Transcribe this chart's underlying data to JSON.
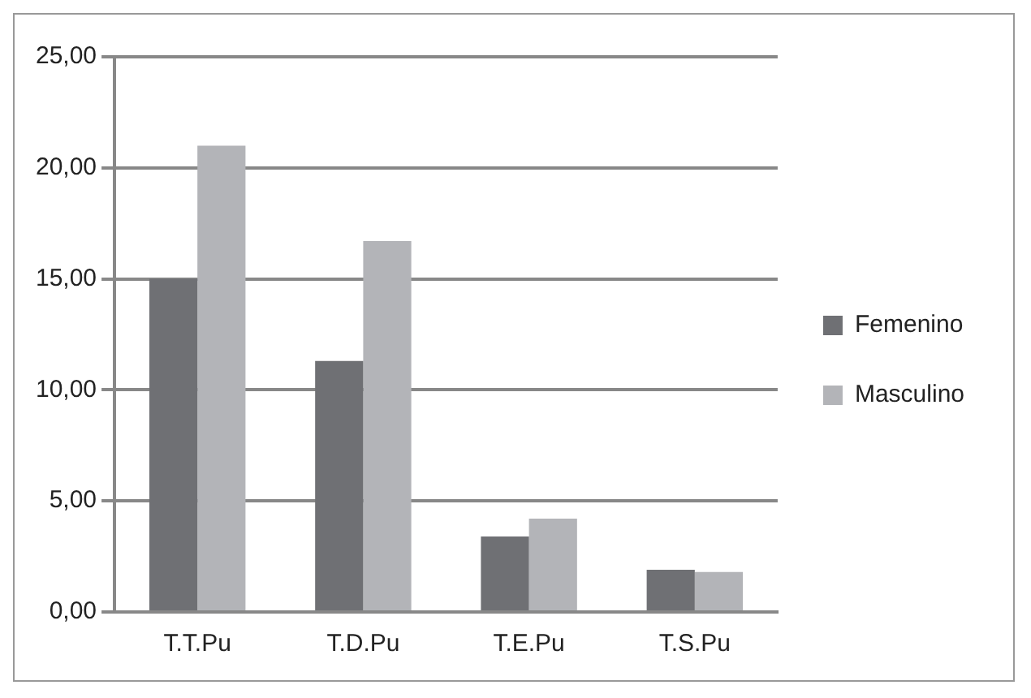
{
  "chart_data": {
    "type": "bar",
    "categories": [
      "T.T.Pu",
      "T.D.Pu",
      "T.E.Pu",
      "T.S.Pu"
    ],
    "series": [
      {
        "name": "Femenino",
        "color": "#6f7074",
        "values": [
          15.0,
          11.3,
          3.4,
          1.9
        ]
      },
      {
        "name": "Masculino",
        "color": "#b3b4b8",
        "values": [
          21.0,
          16.7,
          4.2,
          1.8
        ]
      }
    ],
    "ylim": [
      0,
      25
    ],
    "yticks": [
      {
        "value": 0,
        "label": "0,00"
      },
      {
        "value": 5,
        "label": "5,00"
      },
      {
        "value": 10,
        "label": "10,00"
      },
      {
        "value": 15,
        "label": "15,00"
      },
      {
        "value": 20,
        "label": "20,00"
      },
      {
        "value": 25,
        "label": "25,00"
      }
    ],
    "grid": "y",
    "legend": "right"
  }
}
